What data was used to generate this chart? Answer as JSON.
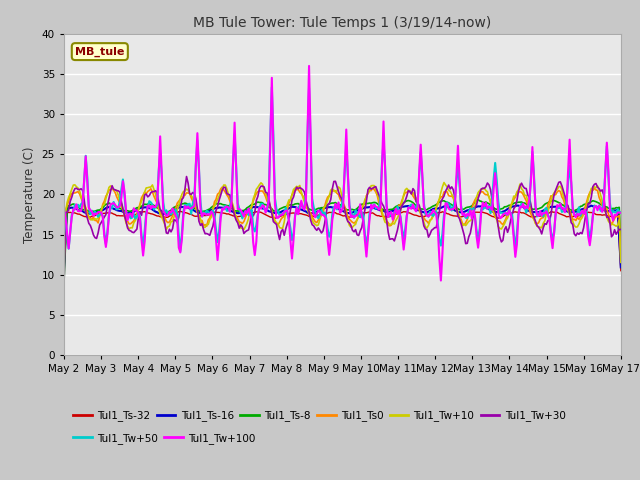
{
  "title": "MB Tule Tower: Tule Temps 1 (3/19/14-now)",
  "ylabel": "Temperature (C)",
  "ylim": [
    0,
    40
  ],
  "yticks": [
    0,
    5,
    10,
    15,
    20,
    25,
    30,
    35,
    40
  ],
  "n_days": 15,
  "x_tick_labels": [
    "May 2",
    "May 3",
    "May 4",
    "May 5",
    "May 6",
    "May 7",
    "May 8",
    "May 9",
    "May 10",
    "May 11",
    "May 12",
    "May 13",
    "May 14",
    "May 15",
    "May 16",
    "May 17"
  ],
  "series": [
    {
      "label": "Tul1_Ts-32",
      "color": "#cc0000",
      "lw": 1.0
    },
    {
      "label": "Tul1_Ts-16",
      "color": "#0000cc",
      "lw": 1.5
    },
    {
      "label": "Tul1_Ts-8",
      "color": "#00aa00",
      "lw": 1.2
    },
    {
      "label": "Tul1_Ts0",
      "color": "#ff8800",
      "lw": 1.2
    },
    {
      "label": "Tul1_Tw+10",
      "color": "#cccc00",
      "lw": 1.2
    },
    {
      "label": "Tul1_Tw+30",
      "color": "#9900aa",
      "lw": 1.2
    },
    {
      "label": "Tul1_Tw+50",
      "color": "#00cccc",
      "lw": 1.5
    },
    {
      "label": "Tul1_Tw+100",
      "color": "#ff00ff",
      "lw": 1.5
    }
  ],
  "annotation_label": "MB_tule",
  "plot_bg_color": "#e8e8e8",
  "fig_bg_color": "#c8c8c8"
}
